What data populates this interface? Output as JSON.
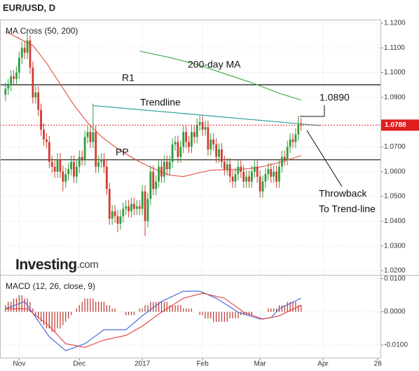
{
  "chart_data": [
    {
      "type": "candlestick",
      "title": "EUR/USD, D",
      "subtitle": "MA Cross (50, 200)",
      "up_color": "#2e9e3e",
      "down_color": "#d23b2f",
      "xlim": [
        -2,
        137
      ],
      "ylim": [
        1.0183,
        1.1214
      ],
      "grid": true,
      "yticks": [
        {
          "value": 1.12,
          "label": "1.1200"
        },
        {
          "value": 1.11,
          "label": "1.1100"
        },
        {
          "value": 1.1,
          "label": "1.1000"
        },
        {
          "value": 1.09,
          "label": "1.0900"
        },
        {
          "value": 1.07,
          "label": "1.0700"
        },
        {
          "value": 1.06,
          "label": "1.0600"
        },
        {
          "value": 1.05,
          "label": "1.0500"
        },
        {
          "value": 1.04,
          "label": "1.0400"
        },
        {
          "value": 1.03,
          "label": "1.0300"
        },
        {
          "value": 1.02,
          "label": "1.0200"
        }
      ],
      "ohlc": [
        [
          1.091,
          1.096,
          1.0885,
          1.0935
        ],
        [
          1.0935,
          1.0975,
          1.091,
          1.095
        ],
        [
          1.095,
          1.101,
          1.0925,
          1.0985
        ],
        [
          1.0985,
          1.101,
          1.095,
          1.0975
        ],
        [
          1.0975,
          1.1025,
          1.095,
          1.1
        ],
        [
          1.1,
          1.1085,
          1.0975,
          1.106
        ],
        [
          1.106,
          1.1125,
          1.1035,
          1.11
        ],
        [
          1.11,
          1.1125,
          1.1055,
          1.108
        ],
        [
          1.108,
          1.116,
          1.1055,
          1.113
        ],
        [
          1.113,
          1.115,
          1.0995,
          1.102
        ],
        [
          1.102,
          1.1045,
          1.0875,
          1.09
        ],
        [
          1.09,
          1.0945,
          1.0875,
          1.092
        ],
        [
          1.092,
          1.0945,
          1.0825,
          1.085
        ],
        [
          1.085,
          1.0875,
          1.0745,
          1.077
        ],
        [
          1.077,
          1.0795,
          1.0705,
          1.073
        ],
        [
          1.073,
          1.0755,
          1.0695,
          1.072
        ],
        [
          1.072,
          1.0745,
          1.0615,
          1.064
        ],
        [
          1.064,
          1.0665,
          1.0595,
          1.062
        ],
        [
          1.062,
          1.0645,
          1.0575,
          1.06
        ],
        [
          1.06,
          1.0675,
          1.0575,
          1.065
        ],
        [
          1.065,
          1.0675,
          1.0575,
          1.06
        ],
        [
          1.06,
          1.0625,
          1.052,
          1.056
        ],
        [
          1.056,
          1.0615,
          1.0535,
          1.059
        ],
        [
          1.059,
          1.0635,
          1.0565,
          1.061
        ],
        [
          1.061,
          1.0665,
          1.0585,
          1.064
        ],
        [
          1.064,
          1.0665,
          1.0555,
          1.058
        ],
        [
          1.058,
          1.0645,
          1.0555,
          1.062
        ],
        [
          1.062,
          1.0685,
          1.0595,
          1.066
        ],
        [
          1.066,
          1.0685,
          1.0625,
          1.065
        ],
        [
          1.065,
          1.0765,
          1.0625,
          1.074
        ],
        [
          1.074,
          1.0785,
          1.0715,
          1.076
        ],
        [
          1.076,
          1.0785,
          1.0695,
          1.072
        ],
        [
          1.072,
          1.0875,
          1.0695,
          1.076
        ],
        [
          1.076,
          1.0785,
          1.0595,
          1.062
        ],
        [
          1.062,
          1.0665,
          1.0595,
          1.064
        ],
        [
          1.064,
          1.0675,
          1.0615,
          1.065
        ],
        [
          1.065,
          1.0675,
          1.0595,
          1.062
        ],
        [
          1.062,
          1.0645,
          1.0505,
          1.053
        ],
        [
          1.053,
          1.0555,
          1.0385,
          1.041
        ],
        [
          1.041,
          1.0465,
          1.0385,
          1.044
        ],
        [
          1.044,
          1.0465,
          1.0395,
          1.042
        ],
        [
          1.042,
          1.0445,
          1.0355,
          1.039
        ],
        [
          1.039,
          1.0445,
          1.0365,
          1.042
        ],
        [
          1.042,
          1.0475,
          1.0395,
          1.045
        ],
        [
          1.045,
          1.0485,
          1.0425,
          1.046
        ],
        [
          1.046,
          1.0485,
          1.0415,
          1.044
        ],
        [
          1.044,
          1.0495,
          1.0415,
          1.047
        ],
        [
          1.047,
          1.0495,
          1.0425,
          1.045
        ],
        [
          1.045,
          1.0485,
          1.0425,
          1.046
        ],
        [
          1.046,
          1.0485,
          1.0425,
          1.045
        ],
        [
          1.045,
          1.0545,
          1.0425,
          1.052
        ],
        [
          1.052,
          1.0545,
          1.034,
          1.04
        ],
        [
          1.04,
          1.0515,
          1.0375,
          1.049
        ],
        [
          1.049,
          1.0625,
          1.0465,
          1.06
        ],
        [
          1.06,
          1.0625,
          1.0505,
          1.053
        ],
        [
          1.053,
          1.0585,
          1.0505,
          1.056
        ],
        [
          1.056,
          1.0645,
          1.0535,
          1.062
        ],
        [
          1.062,
          1.0645,
          1.0555,
          1.058
        ],
        [
          1.058,
          1.0665,
          1.0555,
          1.064
        ],
        [
          1.064,
          1.0665,
          1.0585,
          1.061
        ],
        [
          1.061,
          1.0665,
          1.0585,
          1.064
        ],
        [
          1.064,
          1.0735,
          1.0615,
          1.071
        ],
        [
          1.071,
          1.0745,
          1.0685,
          1.072
        ],
        [
          1.072,
          1.0745,
          1.0635,
          1.066
        ],
        [
          1.066,
          1.0725,
          1.0635,
          1.07
        ],
        [
          1.07,
          1.0785,
          1.0675,
          1.076
        ],
        [
          1.076,
          1.0785,
          1.0695,
          1.072
        ],
        [
          1.072,
          1.0745,
          1.0675,
          1.07
        ],
        [
          1.07,
          1.0785,
          1.0675,
          1.076
        ],
        [
          1.076,
          1.0785,
          1.0715,
          1.074
        ],
        [
          1.074,
          1.0815,
          1.0715,
          1.079
        ],
        [
          1.079,
          1.0825,
          1.0765,
          1.08
        ],
        [
          1.08,
          1.0825,
          1.0745,
          1.077
        ],
        [
          1.077,
          1.0805,
          1.0745,
          1.078
        ],
        [
          1.078,
          1.0805,
          1.0665,
          1.069
        ],
        [
          1.069,
          1.0755,
          1.0665,
          1.073
        ],
        [
          1.073,
          1.0755,
          1.0685,
          1.071
        ],
        [
          1.071,
          1.0735,
          1.0635,
          1.066
        ],
        [
          1.066,
          1.0715,
          1.0635,
          1.069
        ],
        [
          1.069,
          1.0715,
          1.0615,
          1.064
        ],
        [
          1.064,
          1.0665,
          1.0585,
          1.061
        ],
        [
          1.061,
          1.0655,
          1.0585,
          1.063
        ],
        [
          1.063,
          1.0655,
          1.0555,
          1.058
        ],
        [
          1.058,
          1.0605,
          1.0535,
          1.056
        ],
        [
          1.056,
          1.0615,
          1.0535,
          1.059
        ],
        [
          1.059,
          1.0645,
          1.0565,
          1.062
        ],
        [
          1.062,
          1.0645,
          1.0575,
          1.06
        ],
        [
          1.06,
          1.0625,
          1.0535,
          1.056
        ],
        [
          1.056,
          1.0605,
          1.0535,
          1.058
        ],
        [
          1.058,
          1.0605,
          1.0535,
          1.056
        ],
        [
          1.056,
          1.0625,
          1.0535,
          1.06
        ],
        [
          1.06,
          1.0645,
          1.0575,
          1.062
        ],
        [
          1.062,
          1.0645,
          1.0555,
          1.058
        ],
        [
          1.058,
          1.0605,
          1.0495,
          1.052
        ],
        [
          1.052,
          1.0585,
          1.0495,
          1.056
        ],
        [
          1.056,
          1.0615,
          1.0535,
          1.059
        ],
        [
          1.059,
          1.0635,
          1.0565,
          1.061
        ],
        [
          1.061,
          1.0635,
          1.0555,
          1.058
        ],
        [
          1.058,
          1.0625,
          1.0555,
          1.06
        ],
        [
          1.06,
          1.0625,
          1.0535,
          1.056
        ],
        [
          1.056,
          1.0645,
          1.0535,
          1.062
        ],
        [
          1.062,
          1.0685,
          1.0595,
          1.066
        ],
        [
          1.066,
          1.0685,
          1.0625,
          1.065
        ],
        [
          1.065,
          1.0725,
          1.0625,
          1.07
        ],
        [
          1.07,
          1.0755,
          1.0675,
          1.073
        ],
        [
          1.073,
          1.0755,
          1.0695,
          1.072
        ],
        [
          1.072,
          1.0775,
          1.0695,
          1.075
        ],
        [
          1.075,
          1.0825,
          1.0725,
          1.079
        ],
        [
          1.079,
          1.0815,
          1.0765,
          1.0788
        ]
      ],
      "series": [
        {
          "color": "#e35b4f",
          "x": [
            0,
            5,
            10,
            15,
            20,
            25,
            30,
            35,
            40,
            45,
            50,
            55,
            60,
            65,
            70,
            75,
            80,
            85,
            90,
            95,
            100,
            105,
            108
          ],
          "values": [
            1.1166,
            1.1138,
            1.111,
            1.1039,
            1.0954,
            1.0869,
            1.0798,
            1.0742,
            1.07,
            1.0665,
            1.0634,
            1.0608,
            1.0586,
            1.058,
            1.0594,
            1.0606,
            1.0608,
            1.0608,
            1.0614,
            1.0623,
            1.0637,
            1.0654,
            1.0665
          ]
        },
        {
          "name": "200-day MA",
          "color": "#4caf50",
          "x": [
            49,
            60,
            70,
            80,
            90,
            100,
            108
          ],
          "values": [
            1.1087,
            1.1061,
            1.1033,
            1.0996,
            1.0959,
            1.0917,
            1.0889
          ]
        }
      ],
      "levels": [
        {
          "name": "R1",
          "value": 1.0951
        },
        {
          "name": "PP",
          "value": 1.0648
        }
      ],
      "trendline": {
        "label": "Trendline",
        "color": "#3aa6a0",
        "x": [
          32,
          115
        ],
        "values": [
          1.0867,
          1.0786
        ]
      },
      "last_price": {
        "value": 1.0788,
        "label": "1.0788",
        "color": "#e01e1e"
      },
      "annotations": [
        "1.0890",
        "Throwback",
        "To Trend-line"
      ],
      "logo": [
        "Investing",
        ".com"
      ]
    },
    {
      "type": "macd",
      "title": "MACD (12, 26, close, 9)",
      "xlim": [
        -2,
        137
      ],
      "ylim": [
        -0.0138,
        0.0111
      ],
      "grid": true,
      "yticks": [
        {
          "value": 0.01,
          "label": "0.0100"
        },
        {
          "value": 0,
          "label": "0.0000"
        },
        {
          "value": -0.01,
          "label": "-0.0100"
        }
      ],
      "xticks": [
        {
          "value": 5,
          "label": "Nov"
        },
        {
          "value": 27,
          "label": "Dec"
        },
        {
          "value": 50,
          "label": "2017"
        },
        {
          "value": 72,
          "label": "Feb"
        },
        {
          "value": 93,
          "label": "Mar"
        },
        {
          "value": 116,
          "label": "Apr"
        },
        {
          "value": 136,
          "label": "28"
        }
      ],
      "series": [
        {
          "color": "#3f5fd6",
          "x": [
            0,
            7,
            16,
            22,
            29,
            36,
            44,
            50,
            57,
            65,
            71,
            77,
            85,
            93,
            97,
            100,
            108
          ],
          "values": [
            0.0009,
            0.0031,
            -0.0075,
            -0.0117,
            -0.0096,
            -0.0054,
            -0.0054,
            -0.0012,
            0.0031,
            0.0062,
            0.0062,
            0.0041,
            -0.0001,
            -0.0022,
            -0.0018,
            0.0009,
            0.0041
          ]
        },
        {
          "color": "#e0403a",
          "x": [
            0,
            8,
            16,
            22,
            29,
            36,
            44,
            50,
            57,
            65,
            72,
            80,
            87,
            94,
            100,
            108
          ],
          "values": [
            0.0009,
            0.0009,
            -0.0043,
            -0.0096,
            -0.0107,
            -0.0085,
            -0.0071,
            -0.0043,
            -0.0001,
            0.0041,
            0.0056,
            0.0041,
            -0.0001,
            -0.0022,
            -0.0012,
            0.002
          ]
        }
      ],
      "histogram_color": "#b8322a",
      "histogram": [
        0.002,
        0.003,
        0.003,
        0.004,
        0.004,
        0.005,
        0.005,
        0.004,
        0.004,
        0.003,
        0.001,
        -0.001,
        -0.002,
        -0.003,
        -0.004,
        -0.005,
        -0.005,
        -0.006,
        -0.006,
        -0.005,
        -0.005,
        -0.004,
        -0.003,
        -0.002,
        -0.001,
        0,
        0.001,
        0.002,
        0.003,
        0.004,
        0.004,
        0.004,
        0.004,
        0.003,
        0.003,
        0.003,
        0.003,
        0.002,
        0.002,
        0.001,
        0.001,
        0,
        0,
        0,
        -0.001,
        -0.001,
        -0.001,
        -0.001,
        0,
        0.001,
        0.001,
        0.002,
        0.002,
        0.003,
        0.003,
        0.003,
        0.003,
        0.003,
        0.003,
        0.003,
        0.002,
        0.002,
        0.002,
        0.002,
        0.002,
        0.001,
        0.001,
        0.001,
        0.001,
        0,
        0,
        -0.001,
        -0.001,
        -0.002,
        -0.002,
        -0.002,
        -0.003,
        -0.003,
        -0.003,
        -0.003,
        -0.003,
        -0.003,
        -0.002,
        -0.002,
        -0.002,
        -0.002,
        -0.001,
        -0.001,
        -0.001,
        -0.001,
        -0.001,
        0,
        0,
        0,
        0,
        0,
        0.001,
        0.001,
        0.001,
        0.001,
        0.002,
        0.002,
        0.002,
        0.003,
        0.003,
        0.003,
        0.003,
        0.002,
        0.002
      ]
    }
  ]
}
